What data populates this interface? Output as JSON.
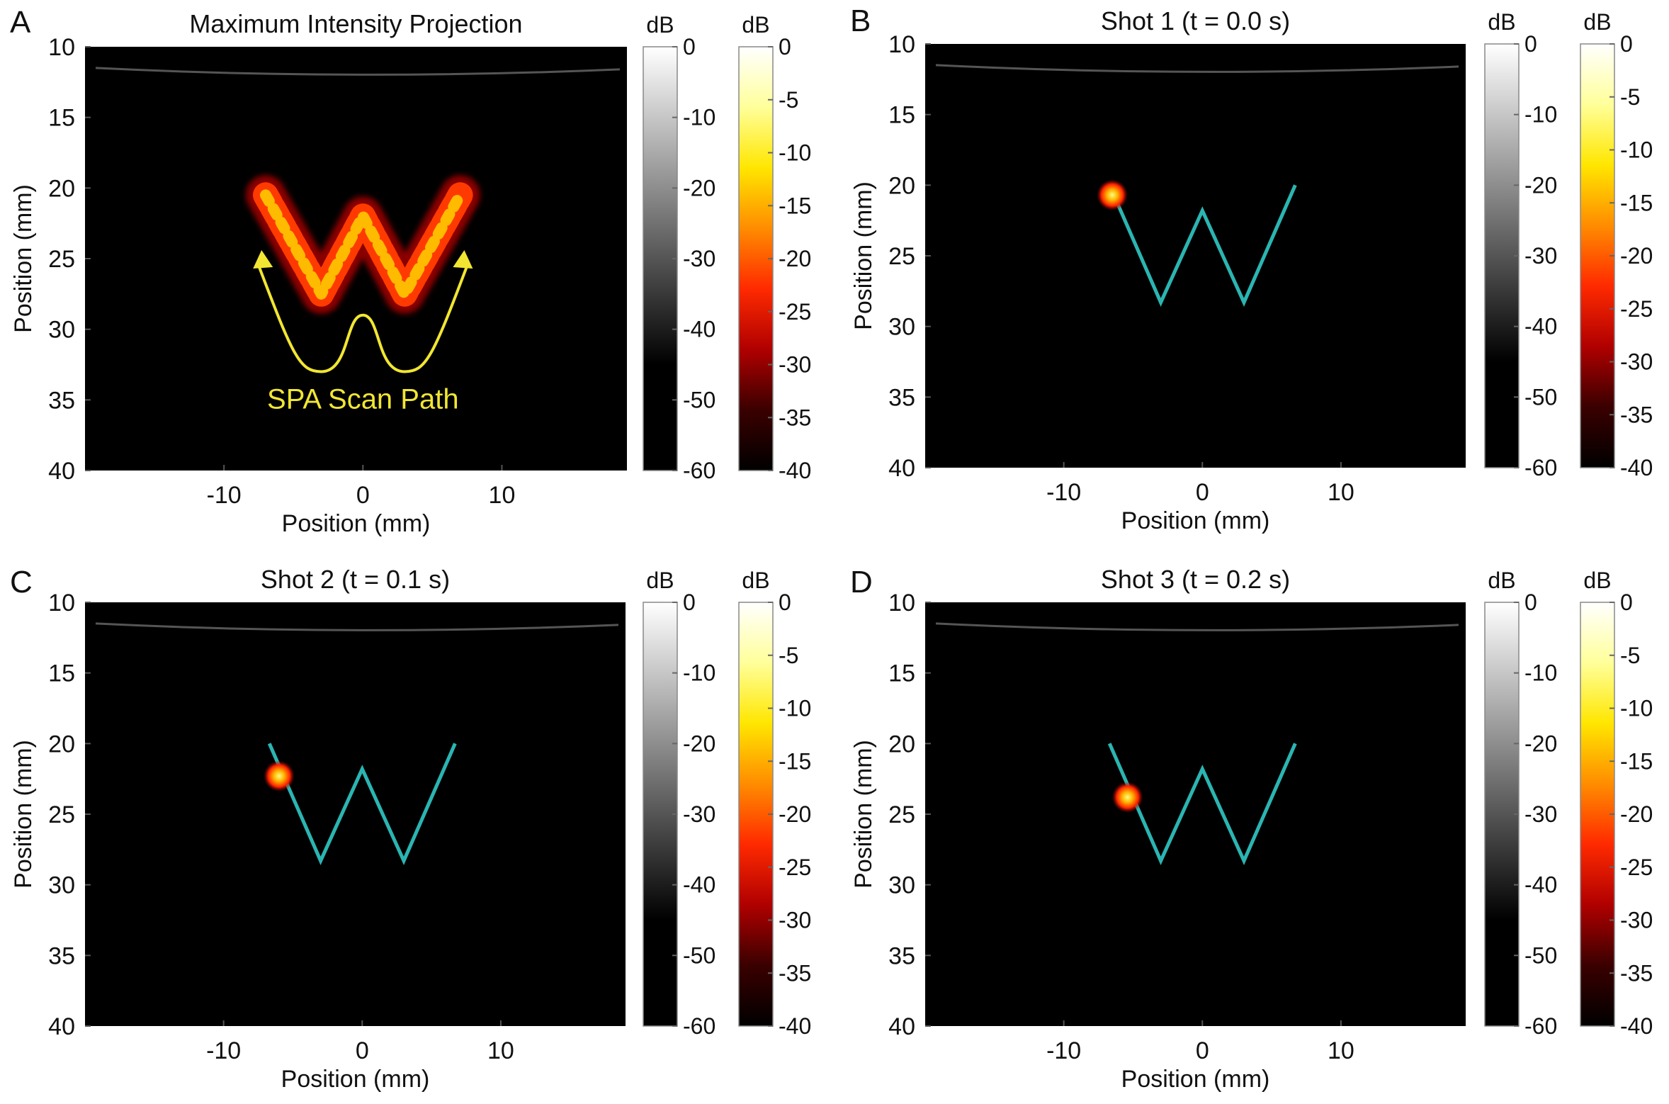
{
  "figure": {
    "panels": [
      {
        "letter": "A",
        "title": "Maximum Intensity Projection",
        "mode": "mip",
        "annotation": "SPA Scan Path"
      },
      {
        "letter": "B",
        "title": "Shot 1 (t = 0.0 s)",
        "mode": "shot"
      },
      {
        "letter": "C",
        "title": "Shot 2 (t = 0.1 s)",
        "mode": "shot"
      },
      {
        "letter": "D",
        "title": "Shot 3 (t = 0.2 s)",
        "mode": "shot"
      }
    ],
    "colors": {
      "background": "#000000",
      "scan_path": "#2bb5b2",
      "annotation": "#f2e632",
      "hot_colormap": [
        "#000000",
        "#3a0000",
        "#b00000",
        "#ff2a00",
        "#ff8c00",
        "#ffe600",
        "#ffff9a",
        "#ffffff"
      ],
      "gray_colormap": [
        "#000000",
        "#000000",
        "#ffffff"
      ]
    }
  },
  "chart_data": [
    {
      "type": "heatmap",
      "panel": "A",
      "title": "Maximum Intensity Projection",
      "xlabel": "Position (mm)",
      "ylabel": "Position (mm)",
      "xlim": [
        -20,
        19
      ],
      "ylim": [
        40,
        10
      ],
      "xticks": [
        -10,
        0,
        10
      ],
      "yticks": [
        10,
        15,
        20,
        25,
        30,
        35,
        40
      ],
      "scan_path_w": {
        "x": [
          -7,
          -3,
          0,
          3,
          7
        ],
        "y": [
          20.5,
          27.5,
          22,
          27.5,
          20.5
        ]
      },
      "spa_scan_path_arrow": {
        "x": [
          -7.5,
          -5,
          -3,
          0,
          3,
          5,
          7.5
        ],
        "y": [
          25.5,
          32,
          33,
          29,
          33,
          32,
          25.5
        ]
      },
      "colorbars": [
        {
          "label": "dB",
          "ticks": [
            0,
            -10,
            -20,
            -30,
            -40,
            -50,
            -60
          ],
          "colormap": "gray"
        },
        {
          "label": "dB",
          "ticks": [
            0,
            -5,
            -10,
            -15,
            -20,
            -25,
            -30,
            -35,
            -40
          ],
          "colormap": "hot"
        }
      ]
    },
    {
      "type": "heatmap",
      "panel": "B",
      "title": "Shot 1 (t = 0.0 s)",
      "xlabel": "Position (mm)",
      "ylabel": "Position (mm)",
      "xlim": [
        -20,
        19
      ],
      "ylim": [
        40,
        10
      ],
      "xticks": [
        -10,
        0,
        10
      ],
      "yticks": [
        10,
        15,
        20,
        25,
        30,
        35,
        40
      ],
      "scan_path_w": {
        "x": [
          -6.7,
          -3,
          0,
          3,
          6.7
        ],
        "y": [
          20,
          28.3,
          21.8,
          28.3,
          20
        ]
      },
      "focal_spot": {
        "x": -6.5,
        "y": 20.7
      },
      "colorbars": [
        {
          "label": "dB",
          "ticks": [
            0,
            -10,
            -20,
            -30,
            -40,
            -50,
            -60
          ],
          "colormap": "gray"
        },
        {
          "label": "dB",
          "ticks": [
            0,
            -5,
            -10,
            -15,
            -20,
            -25,
            -30,
            -35,
            -40
          ],
          "colormap": "hot"
        }
      ]
    },
    {
      "type": "heatmap",
      "panel": "C",
      "title": "Shot 2 (t = 0.1 s)",
      "xlabel": "Position (mm)",
      "ylabel": "Position (mm)",
      "xlim": [
        -20,
        19
      ],
      "ylim": [
        40,
        10
      ],
      "xticks": [
        -10,
        0,
        10
      ],
      "yticks": [
        10,
        15,
        20,
        25,
        30,
        35,
        40
      ],
      "scan_path_w": {
        "x": [
          -6.7,
          -3,
          0,
          3,
          6.7
        ],
        "y": [
          20,
          28.3,
          21.8,
          28.3,
          20
        ]
      },
      "focal_spot": {
        "x": -6,
        "y": 22.3
      },
      "colorbars": [
        {
          "label": "dB",
          "ticks": [
            0,
            -10,
            -20,
            -30,
            -40,
            -50,
            -60
          ],
          "colormap": "gray"
        },
        {
          "label": "dB",
          "ticks": [
            0,
            -5,
            -10,
            -15,
            -20,
            -25,
            -30,
            -35,
            -40
          ],
          "colormap": "hot"
        }
      ]
    },
    {
      "type": "heatmap",
      "panel": "D",
      "title": "Shot 3 (t = 0.2 s)",
      "xlabel": "Position (mm)",
      "ylabel": "Position (mm)",
      "xlim": [
        -20,
        19
      ],
      "ylim": [
        40,
        10
      ],
      "xticks": [
        -10,
        0,
        10
      ],
      "yticks": [
        10,
        15,
        20,
        25,
        30,
        35,
        40
      ],
      "scan_path_w": {
        "x": [
          -6.7,
          -3,
          0,
          3,
          6.7
        ],
        "y": [
          20,
          28.3,
          21.8,
          28.3,
          20
        ]
      },
      "focal_spot": {
        "x": -5.4,
        "y": 23.8
      },
      "colorbars": [
        {
          "label": "dB",
          "ticks": [
            0,
            -10,
            -20,
            -30,
            -40,
            -50,
            -60
          ],
          "colormap": "gray"
        },
        {
          "label": "dB",
          "ticks": [
            0,
            -5,
            -10,
            -15,
            -20,
            -25,
            -30,
            -35,
            -40
          ],
          "colormap": "hot"
        }
      ]
    }
  ]
}
